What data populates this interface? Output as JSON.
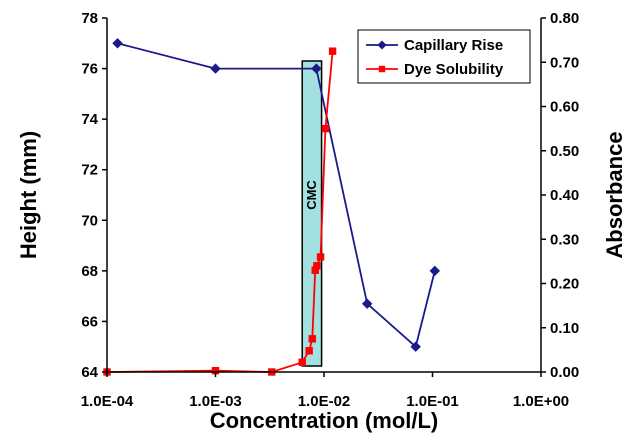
{
  "chart_data": {
    "type": "line",
    "xlabel": "Concentration (mol/L)",
    "ylabel_left": "Height (mm)",
    "ylabel_right": "Absorbance",
    "x_scale": "log",
    "xlim": [
      0.0001,
      1
    ],
    "x_tick_values": [
      0.0001,
      0.001,
      0.01,
      0.1,
      1
    ],
    "x_tick_labels": [
      "1.0E-04",
      "1.0E-03",
      "1.0E-02",
      "1.0E-01",
      "1.0E+00"
    ],
    "ylim_left": [
      64,
      78
    ],
    "y_left_ticks": [
      "64",
      "66",
      "68",
      "70",
      "72",
      "74",
      "76",
      "78"
    ],
    "ylim_right": [
      0,
      0.8
    ],
    "y_right_ticks": [
      "0.00",
      "0.10",
      "0.20",
      "0.30",
      "0.40",
      "0.50",
      "0.60",
      "0.70",
      "0.80"
    ],
    "legend_position": "top-right",
    "series": [
      {
        "name": "Capillary Rise",
        "axis": "left",
        "color": "#1a1a8c",
        "marker": "diamond",
        "x": [
          0.000125,
          0.001,
          0.0085,
          0.025,
          0.07,
          0.105
        ],
        "y": [
          77,
          76,
          76,
          66.7,
          65,
          68
        ]
      },
      {
        "name": "Dye Solubility",
        "axis": "right",
        "color": "#ff0000",
        "marker": "square",
        "x": [
          0.0001,
          0.001,
          0.0033,
          0.0063,
          0.0073,
          0.0078,
          0.0083,
          0.0086,
          0.0093,
          0.0103,
          0.012
        ],
        "y": [
          0.0,
          0.003,
          0.0,
          0.022,
          0.048,
          0.075,
          0.23,
          0.24,
          0.26,
          0.55,
          0.725
        ]
      }
    ],
    "annotations": [
      {
        "text": "CMC",
        "type": "band",
        "x_range": [
          0.0063,
          0.0095
        ],
        "fill": "#66cccc"
      }
    ]
  }
}
